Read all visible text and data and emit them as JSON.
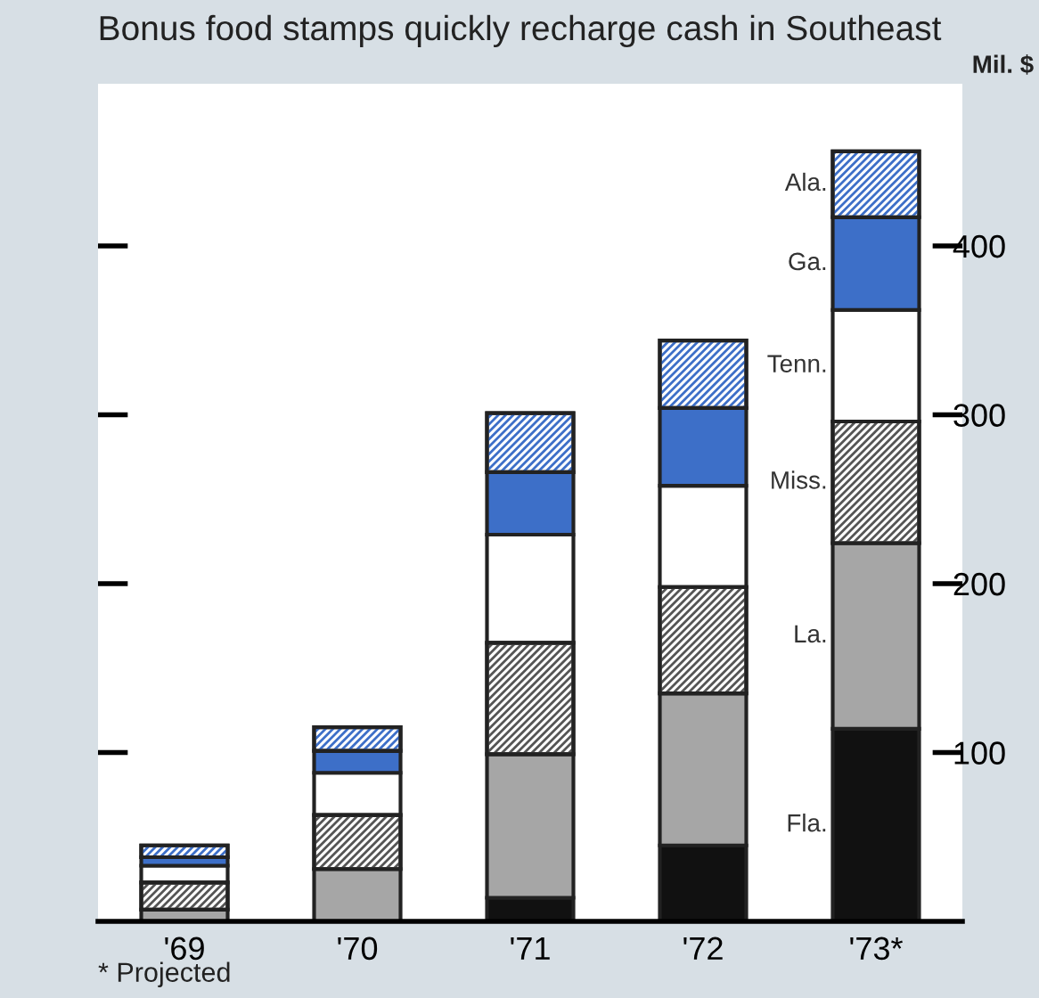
{
  "chart_data": {
    "type": "bar",
    "stacked": true,
    "title": "Bonus food stamps quickly recharge cash in Southeast",
    "ylabel": "Mil. $",
    "categories": [
      "'69",
      "'70",
      "'71",
      "'72",
      "'73*"
    ],
    "series": [
      {
        "name": "Fla.",
        "color": "#111111",
        "values": [
          null,
          null,
          14,
          45,
          114
        ]
      },
      {
        "name": "La.",
        "color": "#a6a6a6",
        "values": [
          7,
          31,
          85,
          90,
          110
        ]
      },
      {
        "name": "Miss.",
        "color": "#ffffff",
        "values": [
          16,
          32,
          66,
          63,
          72
        ]
      },
      {
        "name": "Tenn.",
        "color": "#ffffff",
        "values": [
          10,
          25,
          64,
          60,
          66
        ]
      },
      {
        "name": "Ga.",
        "color": "#3d6fc8",
        "values": [
          5,
          13,
          37,
          46,
          55
        ]
      },
      {
        "name": "Ala.",
        "color": "#ffffff",
        "values": [
          7,
          14,
          35,
          40,
          39
        ]
      }
    ],
    "ylim": [
      0,
      496
    ],
    "yticks": [
      100,
      200,
      300,
      400
    ],
    "grid": false,
    "legend": false,
    "annotations": [
      "* Projected"
    ]
  }
}
